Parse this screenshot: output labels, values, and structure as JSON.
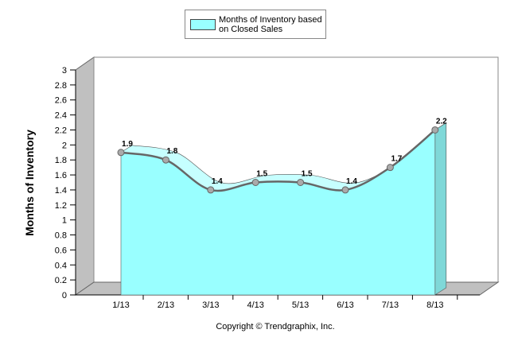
{
  "chart_data": {
    "type": "area",
    "y_label": "Months of Inventory",
    "footer": "Copyright © Trendgraphix, Inc.",
    "categories": [
      "1/13",
      "2/13",
      "3/13",
      "4/13",
      "5/13",
      "6/13",
      "7/13",
      "8/13"
    ],
    "series": [
      {
        "name": "Months of Inventory based on Closed Sales",
        "color": "#99ffff",
        "values": [
          1.9,
          1.8,
          1.4,
          1.5,
          1.5,
          1.4,
          1.7,
          2.2
        ]
      }
    ],
    "ylim": [
      0,
      3
    ],
    "yticks": [
      0,
      0.2,
      0.4,
      0.6,
      0.8,
      1,
      1.2,
      1.4,
      1.6,
      1.8,
      2,
      2.2,
      2.4,
      2.6,
      2.8,
      3
    ]
  }
}
